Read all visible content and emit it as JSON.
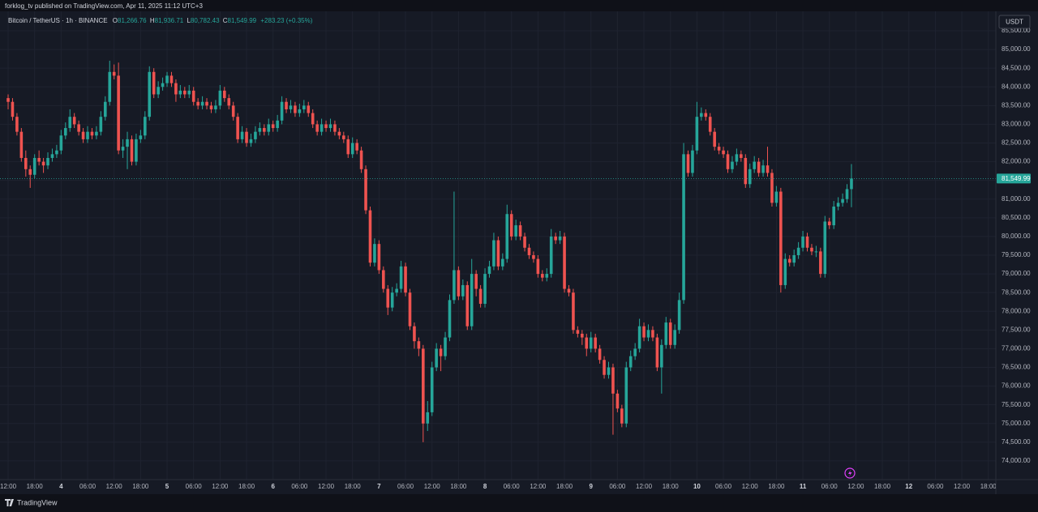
{
  "header": {
    "published": "forklog_tv published on TradingView.com, Apr 11, 2025 11:12 UTC+3"
  },
  "footer": {
    "brand": "TradingView"
  },
  "chart_data": {
    "type": "candlestick",
    "legend": {
      "symbol": "Bitcoin / TetherUS · 1h · BINANCE",
      "o_key": "O",
      "open": "81,266.76",
      "h_key": "H",
      "high": "81,936.71",
      "l_key": "L",
      "low": "80,782.43",
      "c_key": "C",
      "close": "81,549.99",
      "change": "+283.23 (+0.35%)"
    },
    "currency": "USDT",
    "last_price": {
      "value": 81549.99,
      "label": "81,549.99"
    },
    "up_color": "#26a69a",
    "down_color": "#ef5350",
    "grid": true,
    "xlim": [
      -1.84,
      223.7
    ],
    "ylim": [
      73500,
      86020
    ],
    "xticks": [
      {
        "value": 0,
        "label": "12:00"
      },
      {
        "value": 6,
        "label": "18:00"
      },
      {
        "value": 12,
        "label": "4"
      },
      {
        "value": 18,
        "label": "06:00"
      },
      {
        "value": 24,
        "label": "12:00"
      },
      {
        "value": 30,
        "label": "18:00"
      },
      {
        "value": 36,
        "label": "5"
      },
      {
        "value": 42,
        "label": "06:00"
      },
      {
        "value": 48,
        "label": "12:00"
      },
      {
        "value": 54,
        "label": "18:00"
      },
      {
        "value": 60,
        "label": "6"
      },
      {
        "value": 66,
        "label": "06:00"
      },
      {
        "value": 72,
        "label": "12:00"
      },
      {
        "value": 78,
        "label": "18:00"
      },
      {
        "value": 84,
        "label": "7"
      },
      {
        "value": 90,
        "label": "06:00"
      },
      {
        "value": 96,
        "label": "12:00"
      },
      {
        "value": 102,
        "label": "18:00"
      },
      {
        "value": 108,
        "label": "8"
      },
      {
        "value": 114,
        "label": "06:00"
      },
      {
        "value": 120,
        "label": "12:00"
      },
      {
        "value": 126,
        "label": "18:00"
      },
      {
        "value": 132,
        "label": "9"
      },
      {
        "value": 138,
        "label": "06:00"
      },
      {
        "value": 144,
        "label": "12:00"
      },
      {
        "value": 150,
        "label": "18:00"
      },
      {
        "value": 156,
        "label": "10"
      },
      {
        "value": 162,
        "label": "06:00"
      },
      {
        "value": 168,
        "label": "12:00"
      },
      {
        "value": 174,
        "label": "18:00"
      },
      {
        "value": 180,
        "label": "11"
      },
      {
        "value": 186,
        "label": "06:00"
      },
      {
        "value": 192,
        "label": "12:00"
      },
      {
        "value": 198,
        "label": "18:00"
      },
      {
        "value": 204,
        "label": "12"
      },
      {
        "value": 210,
        "label": "06:00"
      },
      {
        "value": 216,
        "label": "12:00"
      },
      {
        "value": 222,
        "label": "18:00"
      }
    ],
    "yticks": [
      {
        "value": 74000,
        "label": "74,000.00"
      },
      {
        "value": 74500,
        "label": "74,500.00"
      },
      {
        "value": 75000,
        "label": "75,000.00"
      },
      {
        "value": 75500,
        "label": "75,500.00"
      },
      {
        "value": 76000,
        "label": "76,000.00"
      },
      {
        "value": 76500,
        "label": "76,500.00"
      },
      {
        "value": 77000,
        "label": "77,000.00"
      },
      {
        "value": 77500,
        "label": "77,500.00"
      },
      {
        "value": 78000,
        "label": "78,000.00"
      },
      {
        "value": 78500,
        "label": "78,500.00"
      },
      {
        "value": 79000,
        "label": "79,000.00"
      },
      {
        "value": 79500,
        "label": "79,500.00"
      },
      {
        "value": 80000,
        "label": "80,000.00"
      },
      {
        "value": 80500,
        "label": "80,500.00"
      },
      {
        "value": 81000,
        "label": "81,000.00"
      },
      {
        "value": 81500,
        "label": "81,500.00"
      },
      {
        "value": 82000,
        "label": "82,000.00"
      },
      {
        "value": 82500,
        "label": "82,500.00"
      },
      {
        "value": 83000,
        "label": "83,000.00"
      },
      {
        "value": 83500,
        "label": "83,500.00"
      },
      {
        "value": 84000,
        "label": "84,000.00"
      },
      {
        "value": 84500,
        "label": "84,500.00"
      },
      {
        "value": 85000,
        "label": "85,000.00"
      },
      {
        "value": 85500,
        "label": "85,500.00"
      }
    ],
    "candles": [
      [
        83700,
        83800,
        83400,
        83600
      ],
      [
        83600,
        83700,
        83100,
        83200
      ],
      [
        83200,
        83300,
        82700,
        82800
      ],
      [
        82800,
        82900,
        82000,
        82100
      ],
      [
        82100,
        82300,
        81600,
        81800
      ],
      [
        81800,
        81900,
        81300,
        81650
      ],
      [
        81650,
        82200,
        81550,
        82100
      ],
      [
        82100,
        82300,
        81900,
        82000
      ],
      [
        82000,
        82100,
        81700,
        81900
      ],
      [
        81900,
        82250,
        81800,
        82100
      ],
      [
        82100,
        82350,
        82000,
        82200
      ],
      [
        82200,
        82450,
        82100,
        82300
      ],
      [
        82300,
        82850,
        82200,
        82700
      ],
      [
        82700,
        83050,
        82600,
        82900
      ],
      [
        82900,
        83400,
        82800,
        83200
      ],
      [
        83200,
        83300,
        82900,
        83000
      ],
      [
        83000,
        83100,
        82700,
        82800
      ],
      [
        82800,
        82900,
        82500,
        82600
      ],
      [
        82600,
        82950,
        82500,
        82800
      ],
      [
        82800,
        82900,
        82600,
        82700
      ],
      [
        82700,
        82950,
        82600,
        82800
      ],
      [
        82800,
        83350,
        82700,
        83200
      ],
      [
        83200,
        83750,
        83100,
        83600
      ],
      [
        83600,
        84700,
        83500,
        84400
      ],
      [
        84400,
        84600,
        84200,
        84300
      ],
      [
        84300,
        84650,
        82200,
        82300
      ],
      [
        82300,
        82600,
        82100,
        82400
      ],
      [
        82400,
        82800,
        81800,
        82600
      ],
      [
        82600,
        82700,
        81900,
        82000
      ],
      [
        82000,
        82750,
        81900,
        82600
      ],
      [
        82600,
        82850,
        82500,
        82700
      ],
      [
        82700,
        83350,
        82600,
        83200
      ],
      [
        83200,
        84550,
        83100,
        84400
      ],
      [
        84400,
        84500,
        83700,
        83800
      ],
      [
        83800,
        84150,
        83700,
        84000
      ],
      [
        84000,
        84250,
        83900,
        84100
      ],
      [
        84100,
        84400,
        84000,
        84300
      ],
      [
        84300,
        84400,
        84000,
        84100
      ],
      [
        84100,
        84200,
        83600,
        83800
      ],
      [
        83800,
        84050,
        83700,
        83900
      ],
      [
        83900,
        84000,
        83700,
        83800
      ],
      [
        83800,
        84050,
        83700,
        83900
      ],
      [
        83900,
        84000,
        83500,
        83600
      ],
      [
        83600,
        83700,
        83400,
        83500
      ],
      [
        83500,
        83750,
        83400,
        83600
      ],
      [
        83600,
        83700,
        83400,
        83500
      ],
      [
        83500,
        83600,
        83300,
        83400
      ],
      [
        83400,
        83650,
        83300,
        83500
      ],
      [
        83500,
        84050,
        83400,
        83900
      ],
      [
        83900,
        84000,
        83600,
        83700
      ],
      [
        83700,
        83800,
        83400,
        83500
      ],
      [
        83500,
        83600,
        83100,
        83200
      ],
      [
        83200,
        83300,
        82500,
        82600
      ],
      [
        82600,
        82950,
        82500,
        82800
      ],
      [
        82800,
        82900,
        82400,
        82500
      ],
      [
        82500,
        82750,
        82400,
        82600
      ],
      [
        82600,
        82950,
        82500,
        82800
      ],
      [
        82800,
        83050,
        82700,
        82900
      ],
      [
        82900,
        83000,
        82700,
        82800
      ],
      [
        82800,
        83150,
        82700,
        83000
      ],
      [
        83000,
        83100,
        82800,
        82900
      ],
      [
        82900,
        83250,
        82800,
        83100
      ],
      [
        83100,
        83750,
        83000,
        83600
      ],
      [
        83600,
        83700,
        83300,
        83400
      ],
      [
        83400,
        83650,
        83300,
        83500
      ],
      [
        83500,
        83600,
        83200,
        83300
      ],
      [
        83300,
        83550,
        83200,
        83400
      ],
      [
        83400,
        83650,
        83300,
        83500
      ],
      [
        83500,
        83600,
        83200,
        83300
      ],
      [
        83300,
        83400,
        82900,
        83000
      ],
      [
        83000,
        83100,
        82700,
        82800
      ],
      [
        82800,
        83150,
        82700,
        83000
      ],
      [
        83000,
        83100,
        82800,
        82900
      ],
      [
        82900,
        83150,
        82800,
        83000
      ],
      [
        83000,
        83100,
        82700,
        82800
      ],
      [
        82800,
        82900,
        82600,
        82700
      ],
      [
        82700,
        82800,
        82500,
        82600
      ],
      [
        82600,
        82700,
        82100,
        82200
      ],
      [
        82200,
        82650,
        82100,
        82500
      ],
      [
        82500,
        82600,
        82200,
        82300
      ],
      [
        82300,
        82400,
        81700,
        81800
      ],
      [
        81800,
        81900,
        80600,
        80700
      ],
      [
        80700,
        80800,
        79200,
        79300
      ],
      [
        79300,
        79950,
        79200,
        79800
      ],
      [
        79800,
        79900,
        79000,
        79100
      ],
      [
        79100,
        79200,
        78500,
        78600
      ],
      [
        78600,
        78700,
        77900,
        78100
      ],
      [
        78100,
        78650,
        78000,
        78500
      ],
      [
        78500,
        78750,
        78400,
        78600
      ],
      [
        78600,
        79350,
        78500,
        79200
      ],
      [
        79200,
        79300,
        78400,
        78500
      ],
      [
        78500,
        78600,
        77500,
        77600
      ],
      [
        77600,
        77700,
        77000,
        77200
      ],
      [
        77200,
        77300,
        76800,
        77000
      ],
      [
        77000,
        77100,
        74500,
        75000
      ],
      [
        75000,
        75600,
        74800,
        75300
      ],
      [
        75300,
        76650,
        75200,
        76500
      ],
      [
        76500,
        77150,
        76400,
        77000
      ],
      [
        77000,
        77100,
        76400,
        76800
      ],
      [
        76800,
        77450,
        76700,
        77300
      ],
      [
        77300,
        78450,
        77200,
        78300
      ],
      [
        78300,
        81200,
        78200,
        79100
      ],
      [
        79100,
        79200,
        78300,
        78400
      ],
      [
        78400,
        78850,
        78300,
        78700
      ],
      [
        78700,
        78800,
        77500,
        77600
      ],
      [
        77600,
        79400,
        77500,
        79000
      ],
      [
        79000,
        79100,
        78400,
        78600
      ],
      [
        78600,
        78700,
        78100,
        78200
      ],
      [
        78200,
        79150,
        78100,
        79000
      ],
      [
        79000,
        79350,
        78900,
        79200
      ],
      [
        79200,
        80100,
        79100,
        79900
      ],
      [
        79900,
        80000,
        79100,
        79200
      ],
      [
        79200,
        79550,
        79100,
        79400
      ],
      [
        79400,
        80850,
        79300,
        80600
      ],
      [
        80600,
        80700,
        79900,
        80000
      ],
      [
        80000,
        80450,
        79900,
        80300
      ],
      [
        80300,
        80400,
        79900,
        80000
      ],
      [
        80000,
        80100,
        79600,
        79700
      ],
      [
        79700,
        79800,
        79400,
        79500
      ],
      [
        79500,
        79600,
        79300,
        79400
      ],
      [
        79400,
        79500,
        78900,
        79000
      ],
      [
        79000,
        79100,
        78800,
        78900
      ],
      [
        78900,
        79150,
        78800,
        79000
      ],
      [
        79000,
        80200,
        78900,
        80000
      ],
      [
        80000,
        80100,
        79800,
        79900
      ],
      [
        79900,
        80150,
        79800,
        80000
      ],
      [
        80000,
        80100,
        78500,
        78600
      ],
      [
        78600,
        78700,
        78400,
        78500
      ],
      [
        78500,
        78600,
        77400,
        77500
      ],
      [
        77500,
        77600,
        77300,
        77400
      ],
      [
        77400,
        77500,
        77100,
        77300
      ],
      [
        77300,
        77400,
        76800,
        77000
      ],
      [
        77000,
        77450,
        76900,
        77300
      ],
      [
        77300,
        77400,
        76900,
        77000
      ],
      [
        77000,
        77100,
        76600,
        76700
      ],
      [
        76700,
        76800,
        76200,
        76300
      ],
      [
        76300,
        76650,
        76200,
        76500
      ],
      [
        76500,
        76600,
        74700,
        75800
      ],
      [
        75800,
        75900,
        75300,
        75400
      ],
      [
        75400,
        75500,
        74900,
        75000
      ],
      [
        75000,
        76650,
        74900,
        76500
      ],
      [
        76500,
        76950,
        76400,
        76800
      ],
      [
        76800,
        77150,
        76700,
        77000
      ],
      [
        77000,
        77800,
        76900,
        77600
      ],
      [
        77600,
        77700,
        77200,
        77300
      ],
      [
        77300,
        77650,
        77200,
        77500
      ],
      [
        77500,
        77600,
        77200,
        77300
      ],
      [
        77300,
        77400,
        76400,
        76500
      ],
      [
        76500,
        77250,
        75800,
        77100
      ],
      [
        77100,
        77850,
        77000,
        77700
      ],
      [
        77700,
        77800,
        77000,
        77100
      ],
      [
        77100,
        77650,
        77000,
        77500
      ],
      [
        77500,
        78500,
        77400,
        78300
      ],
      [
        78300,
        82500,
        78200,
        82200
      ],
      [
        82200,
        82300,
        81600,
        81700
      ],
      [
        81700,
        82450,
        81600,
        82300
      ],
      [
        82300,
        83600,
        82200,
        83200
      ],
      [
        83200,
        83450,
        83100,
        83300
      ],
      [
        83300,
        83400,
        83100,
        83200
      ],
      [
        83200,
        83300,
        82700,
        82800
      ],
      [
        82800,
        82900,
        82300,
        82400
      ],
      [
        82400,
        82500,
        82200,
        82300
      ],
      [
        82300,
        82400,
        82100,
        82200
      ],
      [
        82200,
        82300,
        81700,
        81800
      ],
      [
        81800,
        82150,
        81700,
        82000
      ],
      [
        82000,
        82350,
        81900,
        82200
      ],
      [
        82200,
        82300,
        82000,
        82100
      ],
      [
        82100,
        82200,
        81300,
        81400
      ],
      [
        81400,
        81950,
        81300,
        81800
      ],
      [
        81800,
        82150,
        81700,
        82000
      ],
      [
        82000,
        82100,
        81600,
        81700
      ],
      [
        81700,
        82050,
        81600,
        81900
      ],
      [
        81900,
        82400,
        81600,
        81700
      ],
      [
        81700,
        81800,
        80800,
        80900
      ],
      [
        80900,
        81350,
        80800,
        81200
      ],
      [
        81200,
        81300,
        78500,
        78700
      ],
      [
        78700,
        79550,
        78600,
        79400
      ],
      [
        79400,
        79500,
        79200,
        79300
      ],
      [
        79300,
        79650,
        79200,
        79500
      ],
      [
        79500,
        79850,
        79400,
        79700
      ],
      [
        79700,
        80150,
        79600,
        80000
      ],
      [
        80000,
        80100,
        79600,
        79700
      ],
      [
        79700,
        79800,
        79500,
        79600
      ],
      [
        79600,
        79750,
        79450,
        79600
      ],
      [
        79600,
        79700,
        78900,
        79000
      ],
      [
        79000,
        80550,
        78900,
        80400
      ],
      [
        80400,
        80500,
        80200,
        80300
      ],
      [
        80300,
        80950,
        80200,
        80800
      ],
      [
        80800,
        81050,
        80700,
        80900
      ],
      [
        80900,
        81150,
        80800,
        81000
      ],
      [
        81000,
        81400,
        80900,
        81266.76
      ],
      [
        81266.76,
        81936.71,
        80782.43,
        81549.99
      ]
    ]
  }
}
